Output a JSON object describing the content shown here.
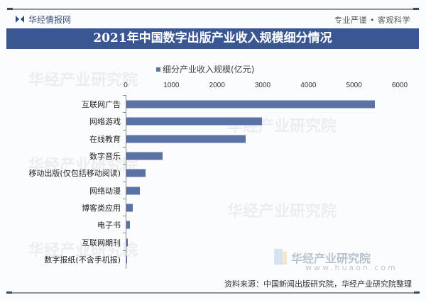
{
  "header": {
    "brand": "华经情报网",
    "slogan": "专业严谨 • 客观科学",
    "title": "2021年中国数字出版产业收入规模细分情况"
  },
  "legend": {
    "label": "细分产业收入规模(亿元)"
  },
  "watermark": {
    "name": "华经产业研究院",
    "url": "www.huaon.com"
  },
  "footer": {
    "source": "资料来源：中国新闻出版研究院，华经产业研究院整理"
  },
  "colors": {
    "bar": "#5a73a4",
    "title_band": "#3a5794"
  },
  "chart_data": {
    "type": "bar",
    "orientation": "horizontal",
    "title": "2021年中国数字出版产业收入规模细分情况",
    "xlabel": "",
    "ylabel": "",
    "xlim": [
      0,
      6000
    ],
    "x_ticks": [
      "0",
      "1000",
      "2000",
      "3000",
      "4000",
      "5000",
      "6000"
    ],
    "legend_position": "top",
    "grid": false,
    "categories": [
      "互联网广告",
      "网络游戏",
      "在线教育",
      "数字音乐",
      "移动出版(仅包括移动阅读)",
      "网络动漫",
      "博客类应用",
      "电子书",
      "互联网期刊",
      "数字报纸(不含手机报)"
    ],
    "series": [
      {
        "name": "细分产业收入规模(亿元)",
        "values": [
          5440,
          2965,
          2610,
          790,
          415,
          300,
          140,
          70,
          25,
          5
        ]
      }
    ]
  }
}
